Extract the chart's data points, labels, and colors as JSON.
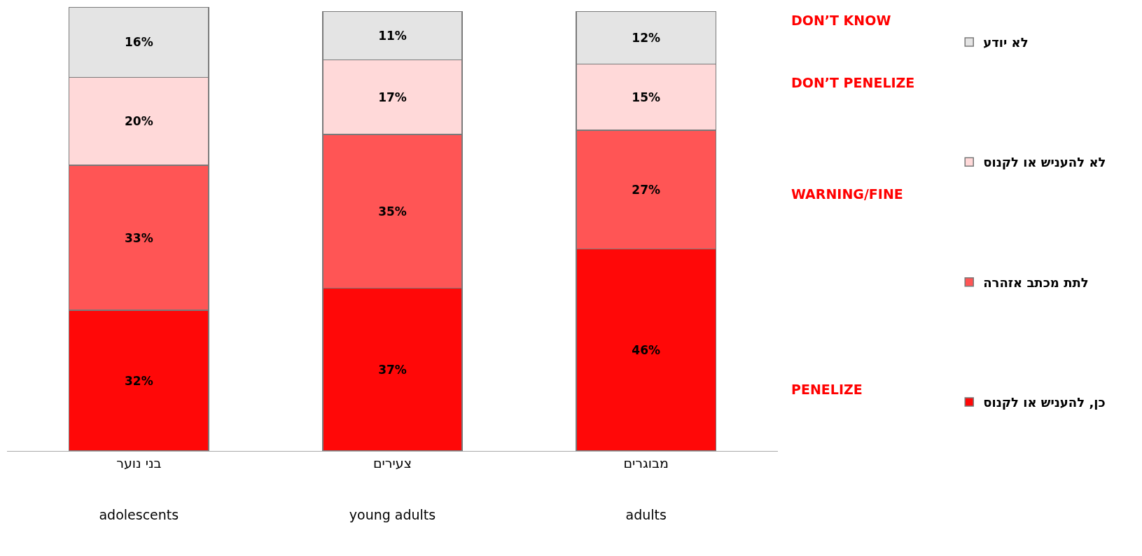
{
  "chart_data": {
    "type": "bar",
    "stacked": true,
    "legend": "right",
    "tick_labels": "x",
    "categories": [
      "בני נוער\nadolescents",
      "צעירים\nyoung adults",
      "מבוגרים\nadults"
    ],
    "series": [
      {
        "name": "כן, להעניש או לקנוס",
        "color": "#ff0808",
        "values": [
          32,
          37,
          46
        ],
        "value_labels": [
          "32%",
          "37%",
          "46%"
        ]
      },
      {
        "name": "לתת מכתב אזהרה",
        "color": "#ff5555",
        "values": [
          33,
          35,
          27
        ],
        "value_labels": [
          "33%",
          "35%",
          "27%"
        ]
      },
      {
        "name": "לא להעניש או לקנוס",
        "color": "#ffd9d9",
        "values": [
          20,
          17,
          15
        ],
        "value_labels": [
          "20%",
          "17%",
          "15%"
        ]
      },
      {
        "name": "לא יודע",
        "color": "#e4e4e4",
        "values": [
          16,
          11,
          12
        ],
        "value_labels": [
          "16%",
          "11%",
          "12%"
        ]
      }
    ],
    "annotations": [
      "DON’T KNOW",
      "DON’T PENELIZE",
      "WARNING/FINE",
      "PENELIZE"
    ]
  }
}
